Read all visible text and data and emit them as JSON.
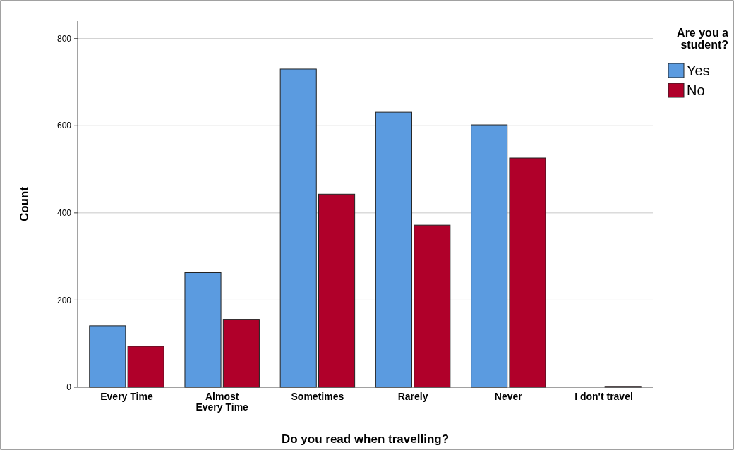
{
  "chart_data": {
    "type": "bar",
    "xlabel": "Do you read when travelling?",
    "ylabel": "Count",
    "legend_title": "Are you a student?",
    "categories": [
      "Every Time",
      "Almost Every Time",
      "Sometimes",
      "Rarely",
      "Never",
      "I don't travel"
    ],
    "series": [
      {
        "name": "Yes",
        "color": "#5b9be0",
        "values": [
          141,
          263,
          730,
          631,
          602,
          0
        ]
      },
      {
        "name": "No",
        "color": "#b0002a",
        "values": [
          94,
          156,
          443,
          372,
          526,
          2
        ]
      }
    ],
    "ylim": [
      0,
      840
    ],
    "yticks": [
      0,
      200,
      400,
      600,
      800
    ],
    "grid": "y",
    "legend": "top right"
  }
}
